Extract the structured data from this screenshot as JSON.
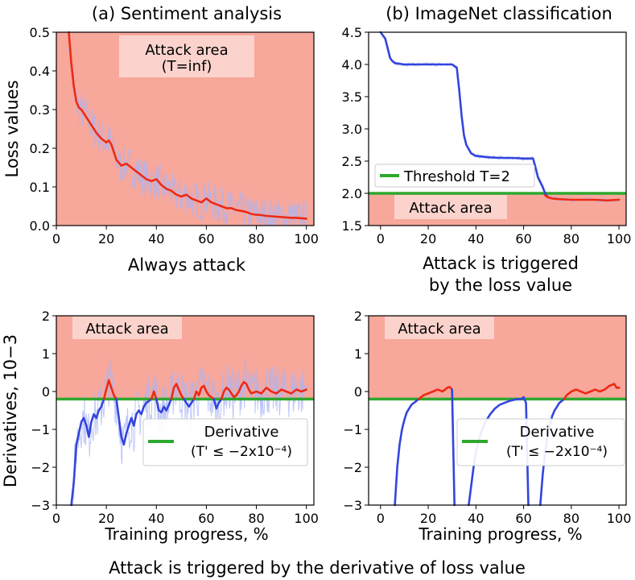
{
  "figure_caption": "Attack is triggered by the derivative of loss value",
  "colors": {
    "attack_area": "#f8a79b",
    "label_box": "#fbd3cc",
    "threshold": "#2ea82e",
    "series_blue": "#3345dd",
    "series_red": "#ee2a14",
    "noise": "#aab4f5"
  },
  "chart_data": [
    {
      "id": "a",
      "type": "line",
      "title": "(a) Sentiment analysis",
      "ylabel": "Loss values",
      "xlabel": "",
      "caption": "Always attack",
      "xlim": [
        0,
        103
      ],
      "ylim": [
        0,
        0.5
      ],
      "xticks": [
        0,
        20,
        40,
        60,
        80,
        100
      ],
      "yticks": [
        0.0,
        0.1,
        0.2,
        0.3,
        0.4,
        0.5
      ],
      "ytick_labels": [
        "0.0",
        "0.1",
        "0.2",
        "0.3",
        "0.4",
        "0.5"
      ],
      "attack_area": {
        "y0": 0,
        "y1": 0.5
      },
      "attack_label": "Attack area",
      "attack_label_2": "(T=inf)",
      "noise": {
        "amp": 0.05
      },
      "series": [
        {
          "name": "Loss (attacking)",
          "color": "red",
          "x": [
            5,
            6,
            7,
            8,
            9,
            10,
            12,
            14,
            16,
            18,
            19,
            20,
            21,
            22,
            23,
            24,
            26,
            28,
            30,
            32,
            34,
            36,
            38,
            40,
            42,
            44,
            46,
            48,
            50,
            52,
            54,
            56,
            58,
            60,
            62,
            64,
            66,
            68,
            70,
            72,
            74,
            76,
            78,
            80,
            82,
            84,
            86,
            88,
            90,
            92,
            94,
            96,
            98,
            100
          ],
          "y": [
            0.5,
            0.42,
            0.36,
            0.32,
            0.305,
            0.3,
            0.28,
            0.26,
            0.24,
            0.225,
            0.22,
            0.215,
            0.22,
            0.21,
            0.19,
            0.17,
            0.155,
            0.16,
            0.15,
            0.14,
            0.13,
            0.12,
            0.115,
            0.12,
            0.105,
            0.095,
            0.09,
            0.08,
            0.075,
            0.08,
            0.07,
            0.065,
            0.06,
            0.07,
            0.06,
            0.055,
            0.05,
            0.045,
            0.045,
            0.04,
            0.038,
            0.035,
            0.03,
            0.028,
            0.027,
            0.025,
            0.024,
            0.023,
            0.022,
            0.021,
            0.02,
            0.02,
            0.019,
            0.018
          ]
        }
      ]
    },
    {
      "id": "b",
      "type": "line",
      "title": "(b) ImageNet classification",
      "ylabel": "",
      "xlabel": "",
      "caption": "Attack is triggered",
      "caption_2": "by the loss value",
      "xlim": [
        -5,
        103
      ],
      "ylim": [
        1.5,
        4.5
      ],
      "xticks": [
        0,
        20,
        40,
        60,
        80,
        100
      ],
      "yticks": [
        1.5,
        2.0,
        2.5,
        3.0,
        3.5,
        4.0,
        4.5
      ],
      "ytick_labels": [
        "1.5",
        "2.0",
        "2.5",
        "3.0",
        "3.5",
        "4.0",
        "4.5"
      ],
      "attack_area": {
        "y0": 1.5,
        "y1": 2.0
      },
      "threshold": 2.0,
      "attack_label": "Attack area",
      "legend_label": "Threshold T=2",
      "noise": {
        "amp": 0.03
      },
      "series": [
        {
          "name": "Loss (normal)",
          "color": "blue",
          "x": [
            0,
            1,
            2,
            3,
            4,
            5,
            6,
            8,
            10,
            15,
            20,
            25,
            30,
            32,
            33,
            34,
            35,
            36,
            38,
            40,
            45,
            50,
            55,
            60,
            64,
            65,
            66,
            68,
            69,
            70
          ],
          "y": [
            4.5,
            4.45,
            4.4,
            4.25,
            4.1,
            4.05,
            4.02,
            4.01,
            4.0,
            4.0,
            4.0,
            4.0,
            4.0,
            3.95,
            3.6,
            3.2,
            2.9,
            2.75,
            2.62,
            2.58,
            2.56,
            2.55,
            2.55,
            2.54,
            2.54,
            2.4,
            2.25,
            2.1,
            2.0,
            1.95
          ]
        },
        {
          "name": "Loss (attacking)",
          "color": "red",
          "x": [
            69,
            70,
            72,
            75,
            80,
            85,
            90,
            95,
            100
          ],
          "y": [
            1.97,
            1.94,
            1.92,
            1.91,
            1.9,
            1.9,
            1.9,
            1.89,
            1.9
          ]
        }
      ]
    },
    {
      "id": "c",
      "type": "line",
      "title": "",
      "ylabel": "Derivatives, 10−3",
      "xlabel": "Training progress, %",
      "xlim": [
        0,
        103
      ],
      "ylim": [
        -3,
        2
      ],
      "xticks": [
        0,
        20,
        40,
        60,
        80,
        100
      ],
      "yticks": [
        -3,
        -2,
        -1,
        0,
        1,
        2
      ],
      "ytick_labels": [
        "−3",
        "−2",
        "−1",
        "0",
        "1",
        "2"
      ],
      "attack_area": {
        "y0": -0.2,
        "y1": 2
      },
      "threshold": -0.2,
      "attack_label": "Attack area",
      "legend_label": "Derivative",
      "legend_label_2": "(T' ≤ −2x10⁻⁴)",
      "noise": {
        "amp": 0.7
      },
      "series": [
        {
          "name": "Derivative (normal)",
          "color": "blue",
          "x": [
            6,
            7,
            8,
            9,
            10,
            11,
            12,
            13,
            14,
            15,
            16,
            17,
            18,
            19
          ],
          "y": [
            -3,
            -2.4,
            -1.4,
            -1.1,
            -0.8,
            -0.7,
            -0.9,
            -1.2,
            -0.8,
            -0.6,
            -0.7,
            -0.5,
            -0.4,
            -0.2
          ]
        },
        {
          "name": "Derivative (attacking)",
          "color": "red",
          "x": [
            19,
            20,
            21,
            22,
            23,
            24
          ],
          "y": [
            -0.2,
            0.05,
            0.3,
            0.1,
            -0.1,
            -0.2
          ]
        },
        {
          "name": "Derivative (normal)",
          "color": "blue",
          "x": [
            24,
            25,
            26,
            27,
            28,
            29,
            30,
            31,
            32,
            33,
            34,
            35,
            36,
            37,
            38
          ],
          "y": [
            -0.2,
            -0.7,
            -1.2,
            -1.4,
            -1.1,
            -0.9,
            -0.7,
            -0.9,
            -0.6,
            -0.5,
            -0.6,
            -0.4,
            -0.3,
            -0.25,
            -0.2
          ]
        },
        {
          "name": "Derivative (attacking)",
          "color": "red",
          "x": [
            38,
            39,
            40
          ],
          "y": [
            -0.2,
            0.0,
            -0.2
          ]
        },
        {
          "name": "Derivative (normal)",
          "color": "blue",
          "x": [
            40,
            41,
            42,
            43,
            44,
            45,
            46
          ],
          "y": [
            -0.2,
            -0.5,
            -0.55,
            -0.4,
            -0.5,
            -0.35,
            -0.2
          ]
        },
        {
          "name": "Derivative (attacking)",
          "color": "red",
          "x": [
            46,
            47,
            48,
            49,
            50,
            51
          ],
          "y": [
            -0.2,
            0.1,
            0.2,
            0.05,
            -0.1,
            -0.2
          ]
        },
        {
          "name": "Derivative (normal)",
          "color": "blue",
          "x": [
            51,
            52,
            53,
            54,
            55
          ],
          "y": [
            -0.2,
            -0.3,
            -0.4,
            -0.3,
            -0.2
          ]
        },
        {
          "name": "Derivative (attacking)",
          "color": "red",
          "x": [
            55,
            56,
            57,
            58,
            59,
            60,
            61,
            62,
            63
          ],
          "y": [
            -0.2,
            0.0,
            -0.1,
            0.1,
            0.15,
            0.0,
            -0.1,
            -0.15,
            -0.2
          ]
        },
        {
          "name": "Derivative (normal)",
          "color": "blue",
          "x": [
            63,
            64,
            65,
            66
          ],
          "y": [
            -0.2,
            -0.45,
            -0.3,
            -0.2
          ]
        },
        {
          "name": "Derivative (attacking)",
          "color": "red",
          "x": [
            66,
            67,
            68,
            69,
            70,
            71,
            72,
            73,
            74,
            75,
            76,
            77,
            78,
            80,
            82,
            84,
            86,
            88,
            90,
            92,
            94,
            96,
            98,
            100
          ],
          "y": [
            -0.2,
            0.0,
            0.1,
            0.05,
            -0.05,
            -0.15,
            -0.1,
            0.0,
            0.15,
            0.25,
            0.2,
            0.05,
            -0.05,
            0.0,
            -0.05,
            0.1,
            0.0,
            -0.05,
            0.05,
            0.0,
            -0.05,
            0.05,
            0.0,
            0.05
          ]
        }
      ]
    },
    {
      "id": "d",
      "type": "line",
      "title": "",
      "ylabel": "",
      "xlabel": "Training progress, %",
      "xlim": [
        -5,
        103
      ],
      "ylim": [
        -3,
        2
      ],
      "xticks": [
        0,
        20,
        40,
        60,
        80,
        100
      ],
      "yticks": [
        -3,
        -2,
        -1,
        0,
        1,
        2
      ],
      "ytick_labels": [
        "−3",
        "−2",
        "−1",
        "0",
        "1",
        "2"
      ],
      "attack_area": {
        "y0": -0.2,
        "y1": 2
      },
      "threshold": -0.2,
      "attack_label": "Attack area",
      "legend_label": "Derivative",
      "legend_label_2": "(T' ≤ −2x10⁻⁴)",
      "series": [
        {
          "name": "Derivative (normal)",
          "color": "blue",
          "x": [
            6,
            7,
            8,
            9,
            10,
            11,
            12,
            13,
            14,
            15,
            16
          ],
          "y": [
            -3,
            -2.0,
            -1.4,
            -1.0,
            -0.75,
            -0.55,
            -0.45,
            -0.35,
            -0.3,
            -0.25,
            -0.2
          ]
        },
        {
          "name": "Derivative (attacking)",
          "color": "red",
          "x": [
            16,
            18,
            20,
            22,
            24,
            26,
            28,
            29,
            30
          ],
          "y": [
            -0.2,
            -0.1,
            -0.05,
            0.0,
            0.05,
            0.0,
            0.1,
            0.12,
            0.05
          ]
        },
        {
          "name": "Derivative (normal)",
          "color": "blue",
          "x": [
            30,
            30.5,
            31
          ],
          "y": [
            0.05,
            -1.5,
            -3
          ]
        },
        {
          "name": "Derivative (normal)",
          "color": "blue",
          "x": [
            37,
            38,
            39,
            40,
            42,
            44,
            46,
            48,
            50,
            52,
            54,
            56,
            58,
            59,
            60,
            61,
            62
          ],
          "y": [
            -3,
            -2.5,
            -2.0,
            -1.6,
            -1.1,
            -0.8,
            -0.6,
            -0.45,
            -0.35,
            -0.3,
            -0.25,
            -0.22,
            -0.2,
            -0.2,
            -0.15,
            -0.3,
            -3
          ]
        },
        {
          "name": "Derivative (normal)",
          "color": "blue",
          "x": [
            67,
            68,
            69,
            70,
            71,
            72,
            73,
            74,
            75,
            76,
            77
          ],
          "y": [
            -3,
            -2.2,
            -1.6,
            -1.2,
            -0.9,
            -0.65,
            -0.5,
            -0.4,
            -0.3,
            -0.25,
            -0.2
          ]
        },
        {
          "name": "Derivative (attacking)",
          "color": "red",
          "x": [
            77,
            78,
            80,
            82,
            84,
            86,
            88,
            90,
            92,
            94,
            96,
            98,
            99,
            100
          ],
          "y": [
            -0.2,
            -0.1,
            0.0,
            0.05,
            0.0,
            -0.05,
            0.0,
            0.05,
            0.0,
            0.05,
            0.15,
            0.2,
            0.1,
            0.1
          ]
        }
      ]
    }
  ]
}
